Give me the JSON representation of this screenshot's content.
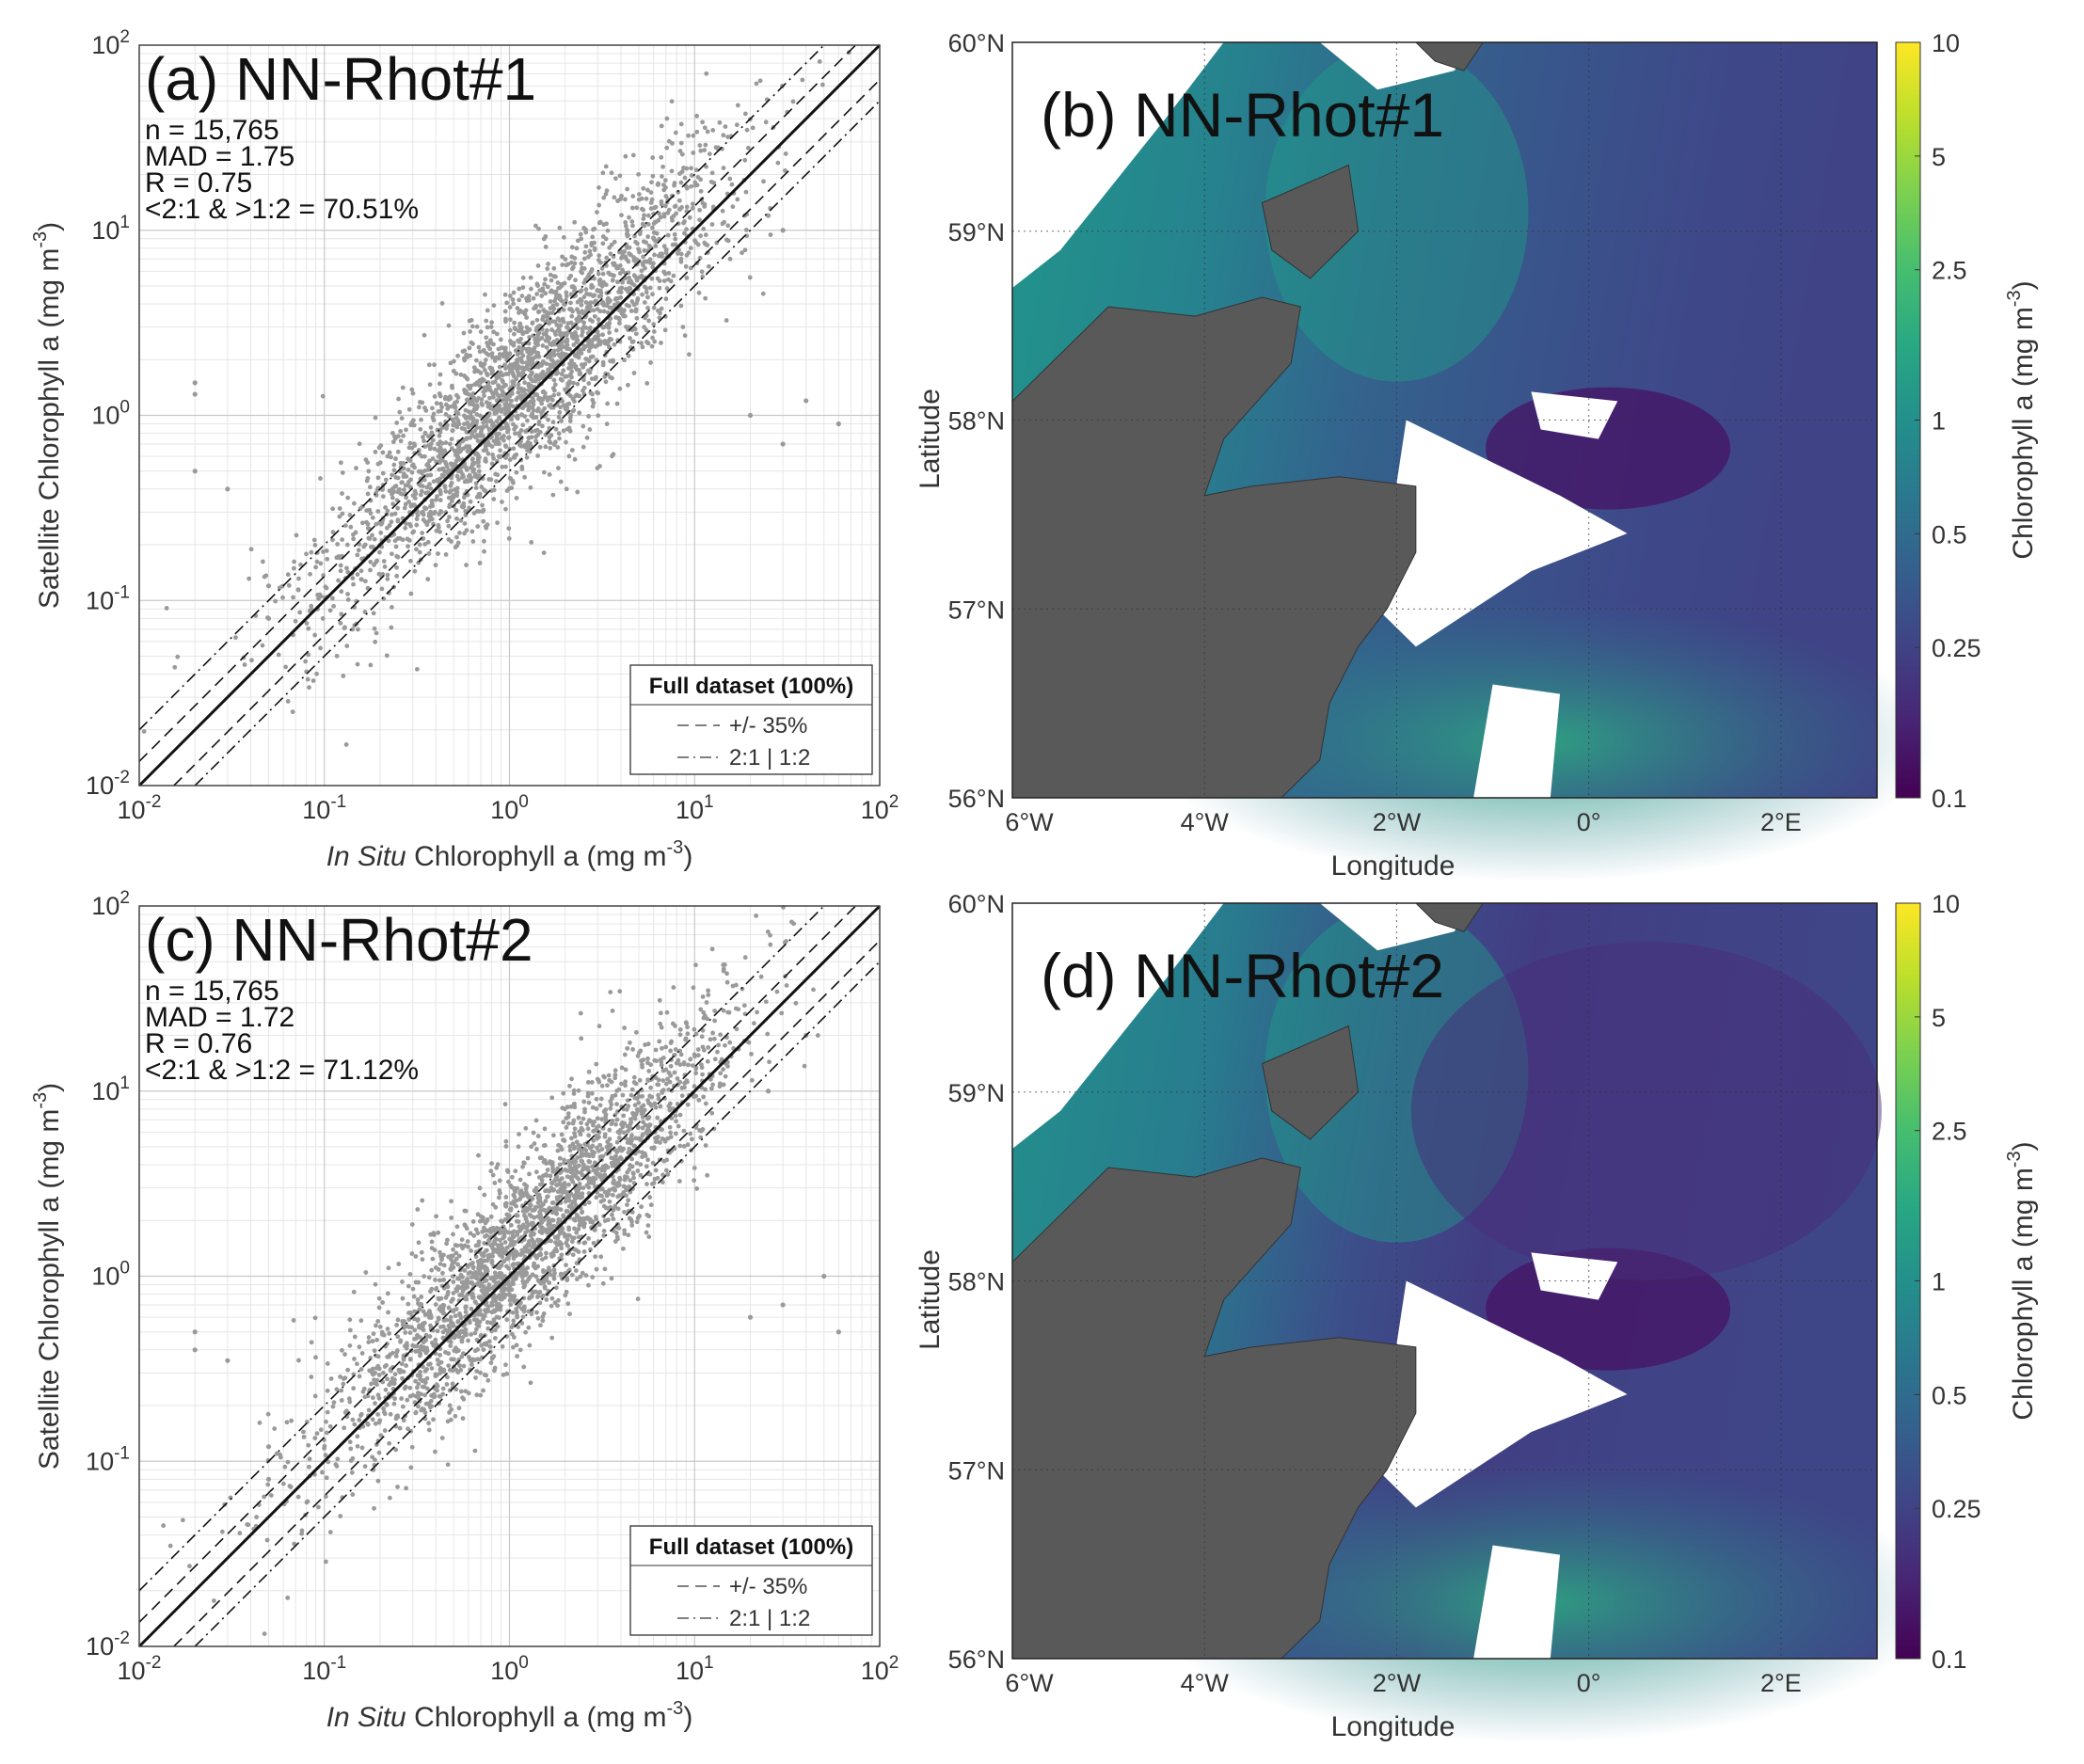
{
  "chart_data": [
    {
      "id": "a",
      "type": "scatter",
      "title": "(a) NN-Rhot#1",
      "xlabel_italic": "In Situ",
      "xlabel_rest": " Chlorophyll a (mg m",
      "ylabel": "Satellite Chlorophyll a (mg m",
      "unit_exponent": "-3",
      "unit_close": ")",
      "xscale": "log",
      "yscale": "log",
      "xlim": [
        0.01,
        100
      ],
      "ylim": [
        0.01,
        100
      ],
      "xtick_labels": [
        {
          "base": "10",
          "exp": "-2"
        },
        {
          "base": "10",
          "exp": "-1"
        },
        {
          "base": "10",
          "exp": "0"
        },
        {
          "base": "10",
          "exp": "1"
        },
        {
          "base": "10",
          "exp": "2"
        }
      ],
      "ytick_labels": [
        {
          "base": "10",
          "exp": "-2"
        },
        {
          "base": "10",
          "exp": "-1"
        },
        {
          "base": "10",
          "exp": "0"
        },
        {
          "base": "10",
          "exp": "1"
        },
        {
          "base": "10",
          "exp": "2"
        }
      ],
      "stats": [
        "n = 15,765",
        "MAD = 1.75",
        "R = 0.75",
        "<2:1 & >1:2 = 70.51%"
      ],
      "point_color": "#9a9a9a",
      "point_cloud": {
        "log_center": 0.1,
        "log_spread": 0.55,
        "log_scatter": 0.26
      },
      "points": [
        [
          0.05,
          0.08
        ],
        [
          0.02,
          1.5
        ],
        [
          0.02,
          1.3
        ],
        [
          0.03,
          0.4
        ],
        [
          0.05,
          0.12
        ],
        [
          0.02,
          0.5
        ],
        [
          20,
          1.0
        ],
        [
          30,
          0.7
        ],
        [
          40,
          1.2
        ],
        [
          60,
          0.9
        ],
        [
          30,
          10
        ],
        [
          25,
          12
        ]
      ],
      "lines": [
        {
          "name": "1:1",
          "factor": 1,
          "style": "solid"
        },
        {
          "name": "+/- 35%",
          "factor": 1.35,
          "style": "dashed"
        },
        {
          "name": "+/- 35%",
          "factor": 0.65,
          "style": "dashed"
        },
        {
          "name": "2:1 | 1:2",
          "factor": 2,
          "style": "dashdot"
        },
        {
          "name": "2:1 | 1:2",
          "factor": 0.5,
          "style": "dashdot"
        }
      ],
      "legend": {
        "title": "Full dataset (100%)",
        "entries": [
          "+/- 35%",
          "2:1 | 1:2"
        ],
        "location": "bottom-right"
      },
      "grid": true
    },
    {
      "id": "b",
      "type": "heatmap",
      "title": "(b) NN-Rhot#1",
      "xlabel": "Longitude",
      "ylabel": "Latitude",
      "xlim": [
        -6,
        3
      ],
      "ylim": [
        56,
        60
      ],
      "xtick_labels": [
        "6°W",
        "4°W",
        "2°W",
        "0°",
        "2°E"
      ],
      "ytick_labels": [
        "60°N",
        "59°N",
        "58°N",
        "57°N",
        "56°N"
      ],
      "colorbar": {
        "label": "Chlorophyll a (mg m",
        "label_exponent": "-3",
        "label_close": ")",
        "scale": "log",
        "range": [
          0.1,
          10
        ],
        "tick_labels": [
          "10",
          "5",
          "2.5",
          "1",
          "0.5",
          "0.25",
          "0.1"
        ],
        "colormap": "viridis"
      },
      "land_color": "#595959",
      "grid": true
    },
    {
      "id": "c",
      "type": "scatter",
      "title": "(c) NN-Rhot#2",
      "xlabel_italic": "In Situ",
      "xlabel_rest": " Chlorophyll a (mg m",
      "ylabel": "Satellite Chlorophyll a (mg m",
      "unit_exponent": "-3",
      "unit_close": ")",
      "xscale": "log",
      "yscale": "log",
      "xlim": [
        0.01,
        100
      ],
      "ylim": [
        0.01,
        100
      ],
      "xtick_labels": [
        {
          "base": "10",
          "exp": "-2"
        },
        {
          "base": "10",
          "exp": "-1"
        },
        {
          "base": "10",
          "exp": "0"
        },
        {
          "base": "10",
          "exp": "1"
        },
        {
          "base": "10",
          "exp": "2"
        }
      ],
      "ytick_labels": [
        {
          "base": "10",
          "exp": "-2"
        },
        {
          "base": "10",
          "exp": "-1"
        },
        {
          "base": "10",
          "exp": "0"
        },
        {
          "base": "10",
          "exp": "1"
        },
        {
          "base": "10",
          "exp": "2"
        }
      ],
      "stats": [
        "n = 15,765",
        "MAD = 1.72",
        "R = 0.76",
        "<2:1 & >1:2 = 71.12%"
      ],
      "point_color": "#9a9a9a",
      "point_cloud": {
        "log_center": 0.1,
        "log_spread": 0.55,
        "log_scatter": 0.25
      },
      "points": [
        [
          0.05,
          0.08
        ],
        [
          0.02,
          0.4
        ],
        [
          0.02,
          0.5
        ],
        [
          0.03,
          0.35
        ],
        [
          0.05,
          0.12
        ],
        [
          20,
          0.6
        ],
        [
          30,
          0.7
        ],
        [
          50,
          1.0
        ],
        [
          60,
          0.5
        ],
        [
          25,
          10
        ],
        [
          40,
          20
        ]
      ],
      "lines": [
        {
          "name": "1:1",
          "factor": 1,
          "style": "solid"
        },
        {
          "name": "+/- 35%",
          "factor": 1.35,
          "style": "dashed"
        },
        {
          "name": "+/- 35%",
          "factor": 0.65,
          "style": "dashed"
        },
        {
          "name": "2:1 | 1:2",
          "factor": 2,
          "style": "dashdot"
        },
        {
          "name": "2:1 | 1:2",
          "factor": 0.5,
          "style": "dashdot"
        }
      ],
      "legend": {
        "title": "Full dataset (100%)",
        "entries": [
          "+/- 35%",
          "2:1 | 1:2"
        ],
        "location": "bottom-right"
      },
      "grid": true
    },
    {
      "id": "d",
      "type": "heatmap",
      "title": "(d) NN-Rhot#2",
      "xlabel": "Longitude",
      "ylabel": "Latitude",
      "xlim": [
        -6,
        3
      ],
      "ylim": [
        56,
        60
      ],
      "xtick_labels": [
        "6°W",
        "4°W",
        "2°W",
        "0°",
        "2°E"
      ],
      "ytick_labels": [
        "60°N",
        "59°N",
        "58°N",
        "57°N",
        "56°N"
      ],
      "colorbar": {
        "label": "Chlorophyll a (mg m",
        "label_exponent": "-3",
        "label_close": ")",
        "scale": "log",
        "range": [
          0.1,
          10
        ],
        "tick_labels": [
          "10",
          "5",
          "2.5",
          "1",
          "0.5",
          "0.25",
          "0.1"
        ],
        "colormap": "viridis"
      },
      "land_color": "#595959",
      "grid": true
    }
  ]
}
